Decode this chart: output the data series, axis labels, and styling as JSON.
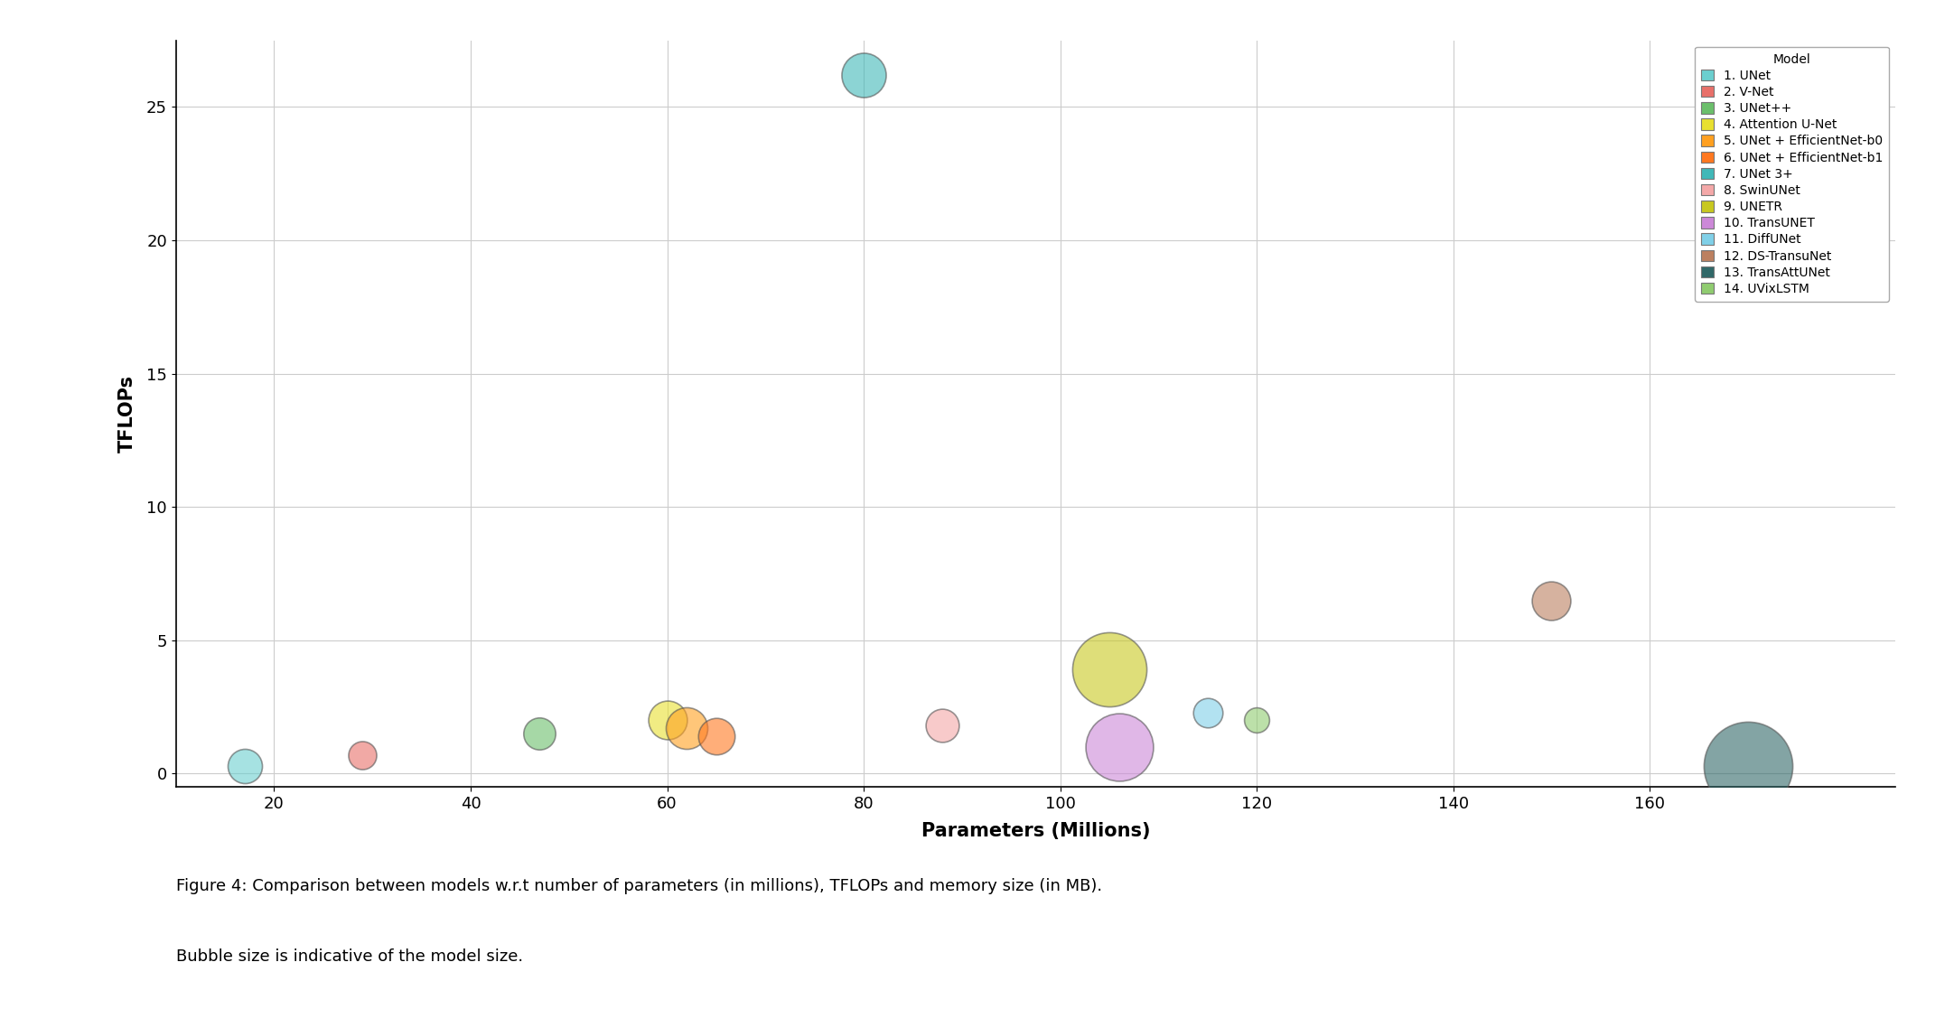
{
  "models": [
    {
      "name": "1. UNet",
      "params": 17,
      "tflops": 0.3,
      "memory": 150,
      "color": "#6BCFCF"
    },
    {
      "name": "2. V-Net",
      "params": 29,
      "tflops": 0.7,
      "memory": 100,
      "color": "#E8706A"
    },
    {
      "name": "3. UNet++",
      "params": 47,
      "tflops": 1.5,
      "memory": 130,
      "color": "#6BBF6B"
    },
    {
      "name": "4. Attention U-Net",
      "params": 60,
      "tflops": 2.0,
      "memory": 190,
      "color": "#E8E030"
    },
    {
      "name": "5. UNet + EfficientNet-b0",
      "params": 62,
      "tflops": 1.7,
      "memory": 220,
      "color": "#FFA020"
    },
    {
      "name": "6. UNet + EfficientNet-b1",
      "params": 65,
      "tflops": 1.4,
      "memory": 170,
      "color": "#FF7820"
    },
    {
      "name": "7. UNet 3+",
      "params": 80,
      "tflops": 26.2,
      "memory": 250,
      "color": "#40B8B8"
    },
    {
      "name": "8. SwinUNet",
      "params": 88,
      "tflops": 1.8,
      "memory": 140,
      "color": "#F4A8A8"
    },
    {
      "name": "9. UNETR",
      "params": 105,
      "tflops": 3.9,
      "memory": 700,
      "color": "#C8C820"
    },
    {
      "name": "10. TransUNET",
      "params": 106,
      "tflops": 1.0,
      "memory": 580,
      "color": "#CC88D8"
    },
    {
      "name": "11. DiffUNet",
      "params": 115,
      "tflops": 2.3,
      "memory": 110,
      "color": "#80D0E8"
    },
    {
      "name": "12. DS-TransuNet",
      "params": 150,
      "tflops": 6.5,
      "memory": 190,
      "color": "#BC8060"
    },
    {
      "name": "13. TransAttUNet",
      "params": 170,
      "tflops": 0.3,
      "memory": 1000,
      "color": "#306868"
    },
    {
      "name": "14. UVixLSTM",
      "params": 120,
      "tflops": 2.0,
      "memory": 80,
      "color": "#90CC70"
    }
  ],
  "xlabel": "Parameters (Millions)",
  "ylabel": "TFLOPs",
  "legend_title": "Model",
  "ylim": [
    -0.5,
    27.5
  ],
  "xlim": [
    10,
    185
  ],
  "xticks": [
    20,
    40,
    60,
    80,
    100,
    120,
    140,
    160
  ],
  "yticks": [
    0,
    5,
    10,
    15,
    20,
    25
  ],
  "figsize": [
    21.63,
    11.17
  ],
  "dpi": 100,
  "caption_line1": "Figure 4: Comparison between models w.r.t number of parameters (in millions), TFLOPs and memory size (in MB).",
  "caption_line2": "Bubble size is indicative of the model size.",
  "background_color": "#FFFFFF",
  "grid_color": "#CCCCCC",
  "size_scale": 5000
}
